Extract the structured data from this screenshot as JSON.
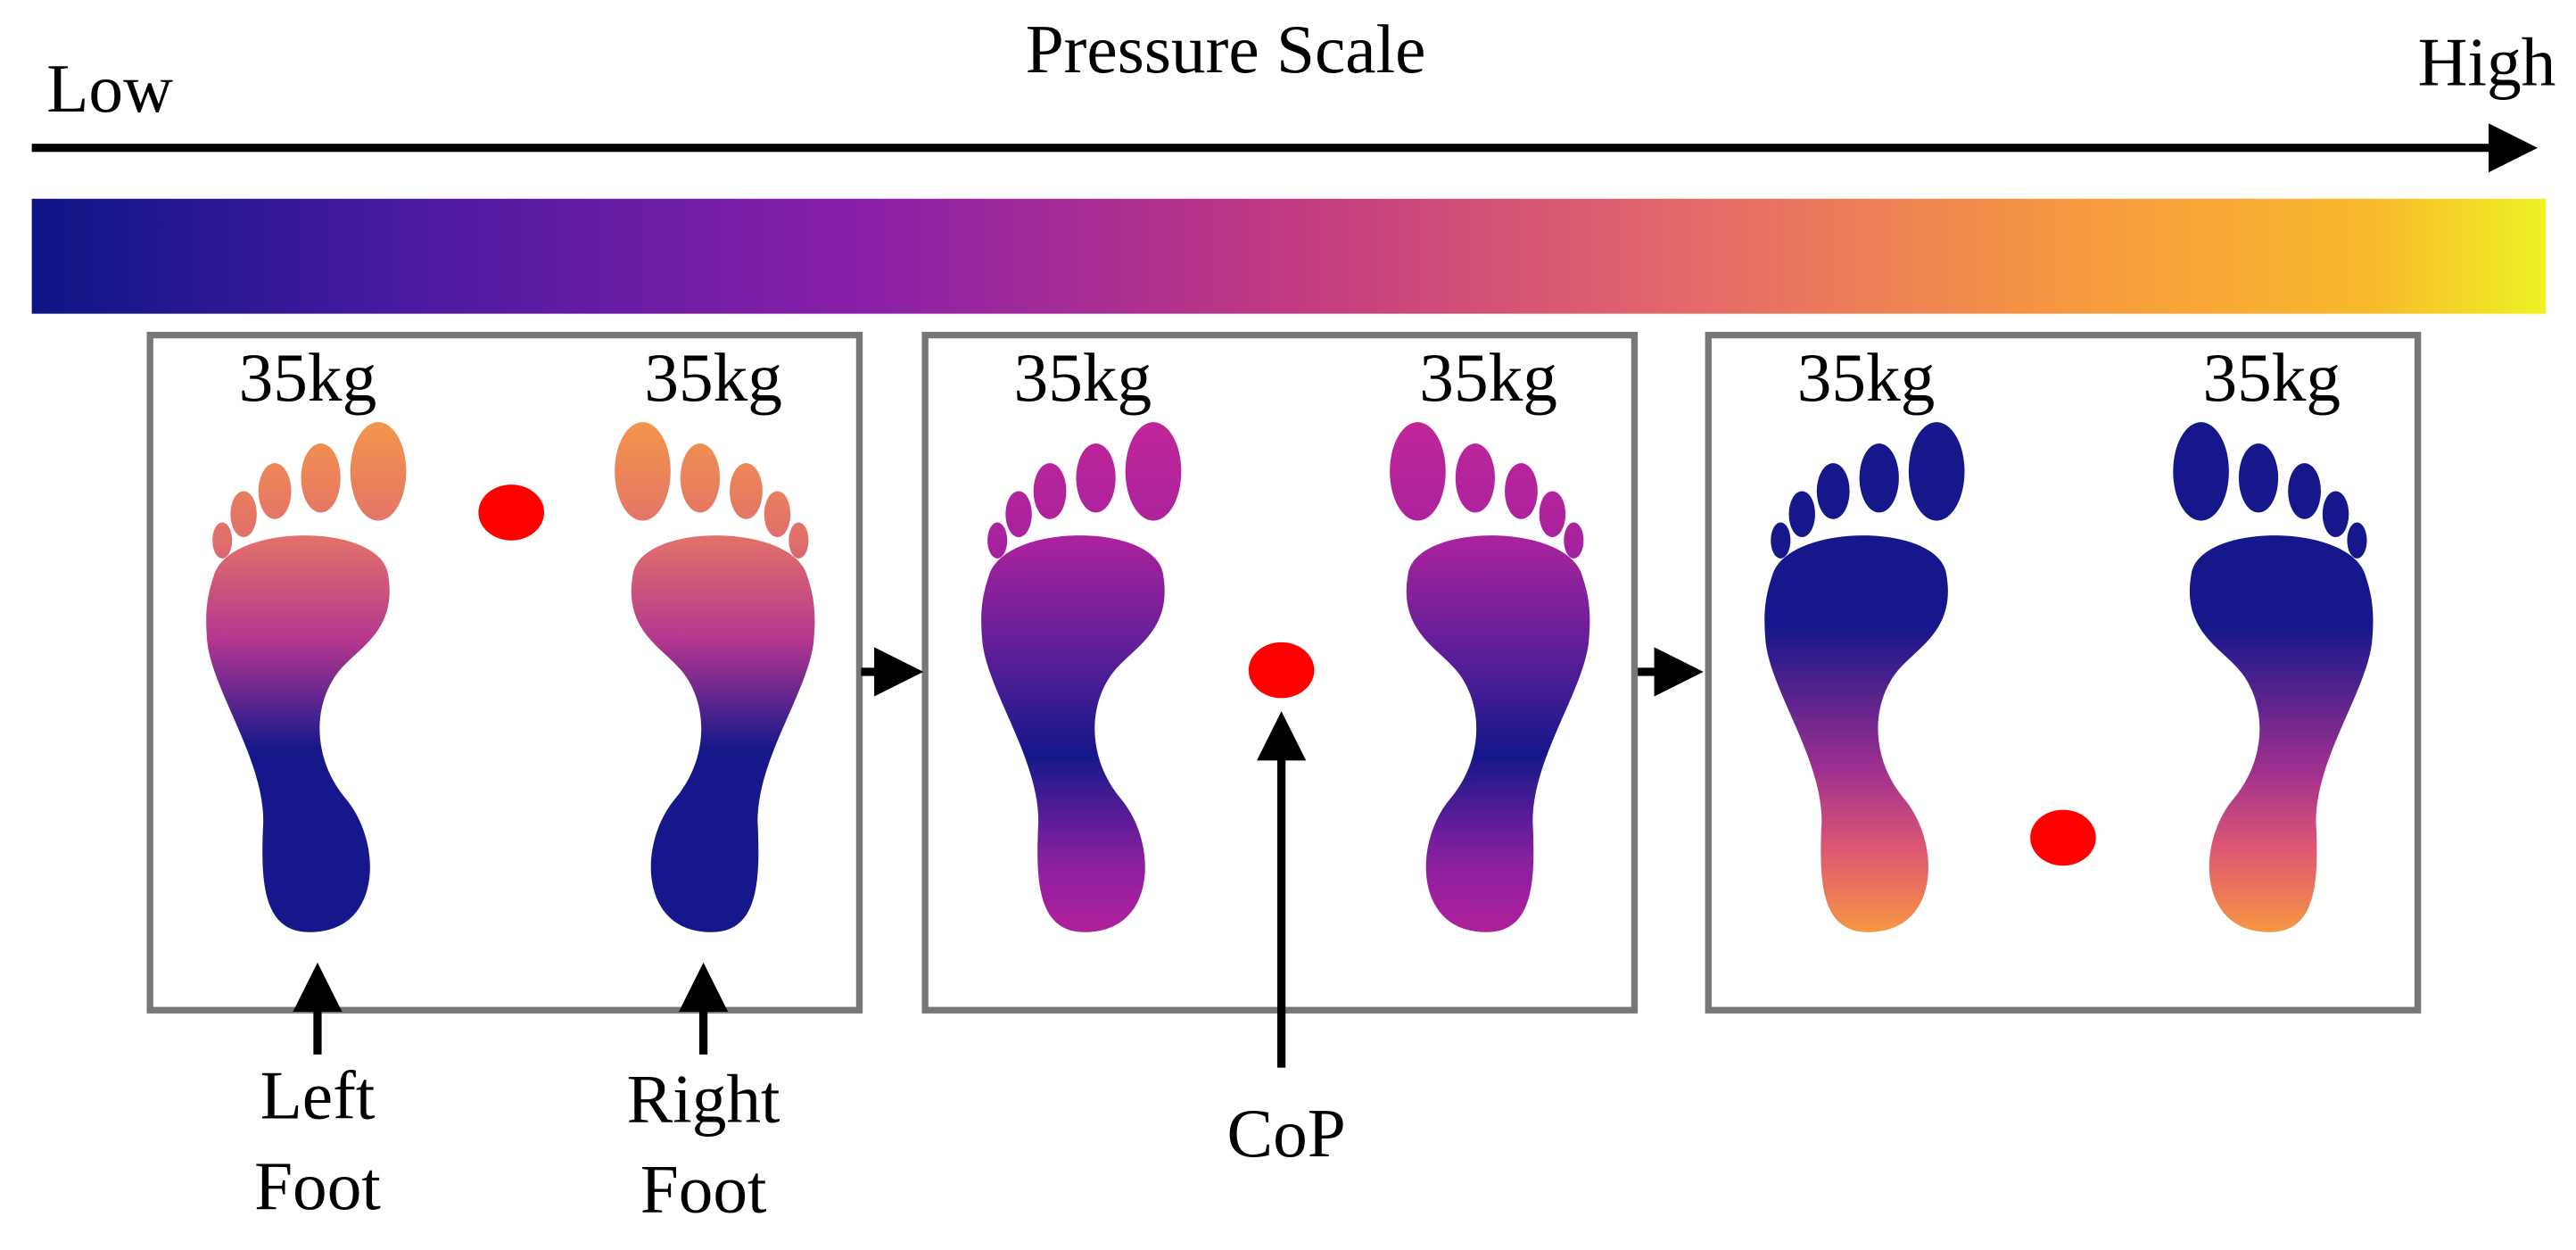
{
  "header": {
    "title": "Pressure Scale",
    "low": "Low",
    "high": "High"
  },
  "panels": [
    {
      "left_weight": "35kg",
      "right_weight": "35kg"
    },
    {
      "left_weight": "35kg",
      "right_weight": "35kg"
    },
    {
      "left_weight": "35kg",
      "right_weight": "35kg"
    }
  ],
  "labels": {
    "left_foot": [
      "Left",
      "Foot"
    ],
    "right_foot": [
      "Right",
      "Foot"
    ],
    "cop": "CoP"
  }
}
